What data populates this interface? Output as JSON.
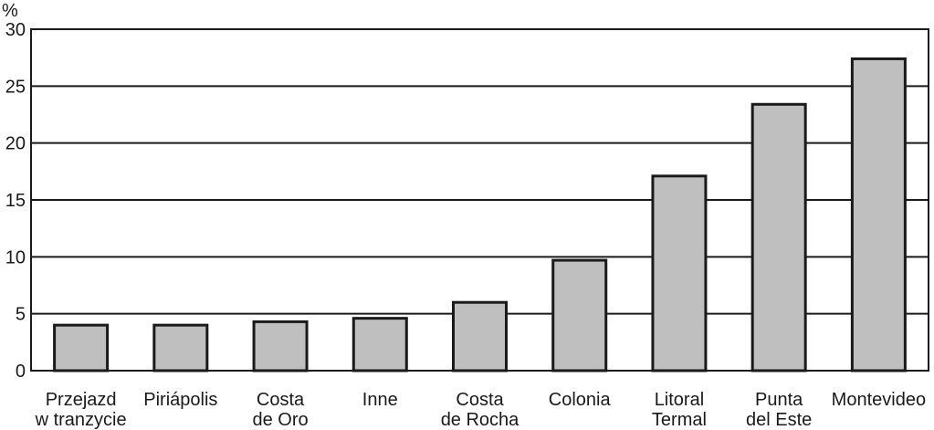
{
  "chart_data": {
    "type": "bar",
    "ylabel": "%",
    "ylim": [
      0,
      30
    ],
    "yticks": [
      "0",
      "5",
      "10",
      "15",
      "20",
      "25",
      "30"
    ],
    "grid": true,
    "categories": [
      [
        "Przejazd",
        "w tranzycie"
      ],
      [
        "Piriápolis"
      ],
      [
        "Costa",
        "de Oro"
      ],
      [
        "Inne"
      ],
      [
        "Costa",
        "de Rocha"
      ],
      [
        "Colonia"
      ],
      [
        "Litoral",
        "Termal"
      ],
      [
        "Punta",
        "del Este"
      ],
      [
        "Montevideo"
      ]
    ],
    "values": [
      4.0,
      4.0,
      4.3,
      4.6,
      6.0,
      9.7,
      17.1,
      23.4,
      27.4
    ],
    "colors": {
      "bar_fill": "#bfbfbf",
      "bar_stroke": "#1a1a1a",
      "grid": "#1a1a1a",
      "axis": "#1a1a1a"
    }
  }
}
